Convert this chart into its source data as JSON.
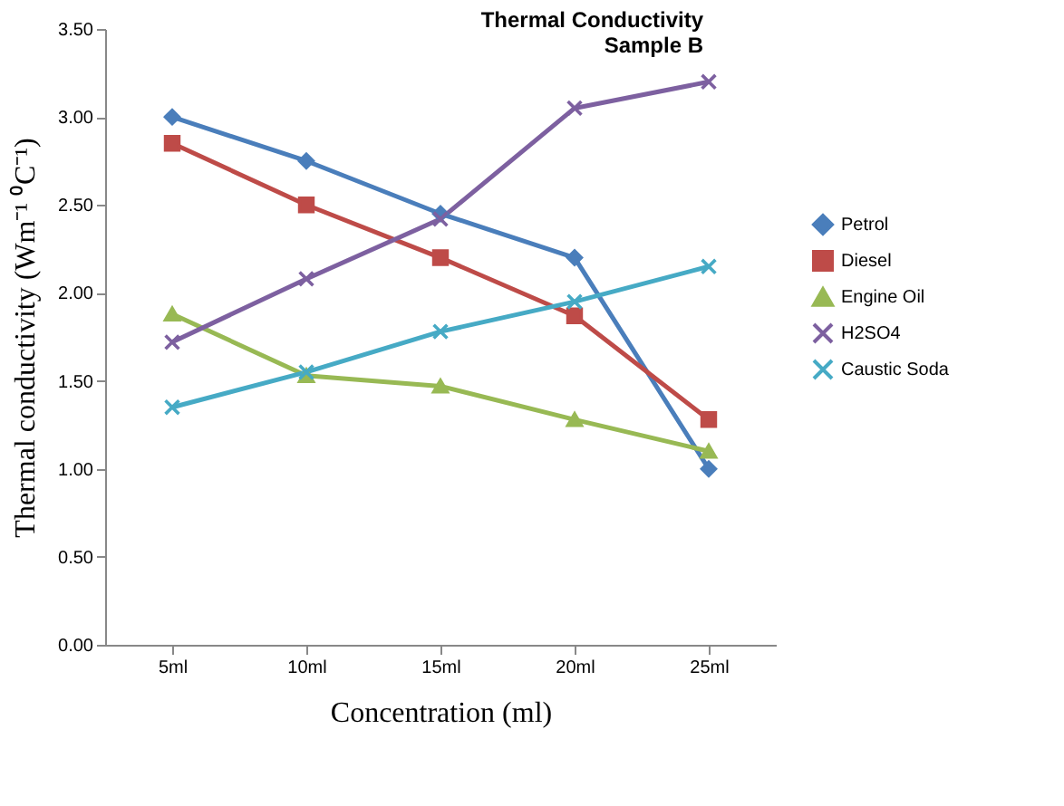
{
  "chart_data": {
    "type": "line",
    "title": [
      "Thermal Conductivity",
      "Sample B"
    ],
    "xlabel": "Concentration (ml)",
    "ylabel": "Thermal conductivity (Wm⁻¹ ⁰C⁻¹)",
    "categories": [
      "5ml",
      "10ml",
      "15ml",
      "20ml",
      "25ml"
    ],
    "series": [
      {
        "name": "Petrol",
        "color": "#4a7ebb",
        "marker": "diamond",
        "values": [
          3.0,
          2.75,
          2.45,
          2.2,
          1.0
        ]
      },
      {
        "name": "Diesel",
        "color": "#be4b48",
        "marker": "square",
        "values": [
          2.85,
          2.5,
          2.2,
          1.87,
          1.28
        ]
      },
      {
        "name": "Engine Oil",
        "color": "#98b954",
        "marker": "triangle",
        "values": [
          1.88,
          1.53,
          1.47,
          1.28,
          1.1
        ]
      },
      {
        "name": "H2SO4",
        "color": "#7d60a0",
        "marker": "cross",
        "values": [
          1.72,
          2.08,
          2.42,
          3.05,
          3.2
        ]
      },
      {
        "name": "Caustic Soda",
        "color": "#46aac5",
        "marker": "cross",
        "values": [
          1.35,
          1.55,
          1.78,
          1.95,
          2.15
        ]
      }
    ],
    "ylim": [
      0,
      3.5
    ],
    "yticks": [
      {
        "value": 0,
        "label": "0.00"
      },
      {
        "value": 0.5,
        "label": "0.50"
      },
      {
        "value": 1,
        "label": "1.00"
      },
      {
        "value": 1.5,
        "label": "1.50"
      },
      {
        "value": 2,
        "label": "2.00"
      },
      {
        "value": 2.5,
        "label": "2.50"
      },
      {
        "value": 3,
        "label": "3.00"
      },
      {
        "value": 3.5,
        "label": "3.50"
      }
    ],
    "legend": "right",
    "grid": false,
    "line_style": "solid"
  }
}
